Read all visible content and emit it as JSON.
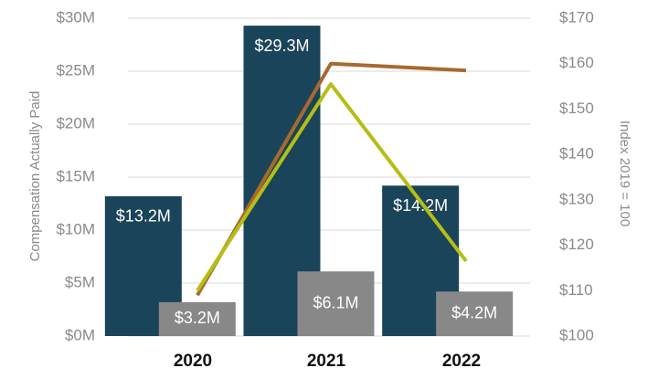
{
  "chart_data": {
    "type": "bar",
    "categories": [
      "2020",
      "2021",
      "2022"
    ],
    "series": [
      {
        "type": "bar",
        "axis": "left",
        "color": "#1a4459",
        "values": [
          13.2,
          29.3,
          14.2
        ],
        "labels": [
          "$13.2M",
          "$29.3M",
          "$14.2M"
        ]
      },
      {
        "type": "bar",
        "axis": "left",
        "color": "#888888",
        "values": [
          3.2,
          6.1,
          4.2
        ],
        "labels": [
          "$3.2M",
          "$6.1M",
          "$4.2M"
        ]
      },
      {
        "type": "line",
        "axis": "right",
        "color": "#a8692e",
        "values": [
          109,
          160,
          158.5
        ]
      },
      {
        "type": "line",
        "axis": "right",
        "color": "#b5be14",
        "values": [
          110,
          155.5,
          116.5
        ]
      }
    ],
    "ylabel": "Compensation Actually Paid",
    "y2label": "Index 2019 = 100",
    "ylim": [
      0,
      30
    ],
    "y2lim": [
      100,
      170
    ],
    "yticks": [
      "$0M",
      "$5M",
      "$10M",
      "$15M",
      "$20M",
      "$25M",
      "$30M"
    ],
    "y2ticks": [
      "$100",
      "$110",
      "$120",
      "$130",
      "$140",
      "$150",
      "$160",
      "$170"
    ],
    "grid": true
  }
}
